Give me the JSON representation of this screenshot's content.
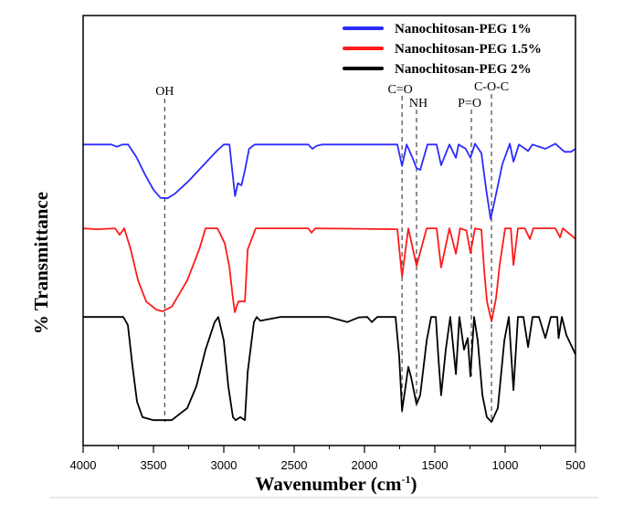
{
  "chart_data": {
    "type": "line",
    "title": "",
    "xlabel": "Wavenumber (cm",
    "xlabel_sup": "-1",
    "xlabel_close": ")",
    "ylabel": "% Transmittance",
    "xlim": [
      4000,
      500
    ],
    "ylim": [
      0,
      100
    ],
    "x_reversed": true,
    "grid": false,
    "legend_placement": "top-right",
    "xticks": [
      4000,
      3500,
      3000,
      2500,
      2000,
      1500,
      1000,
      500
    ],
    "xtick_labels": [
      "4000",
      "3500",
      "3000",
      "2500",
      "2000",
      "1500",
      "1000",
      "500"
    ],
    "series": [
      {
        "name": "Nanochitosan-PEG 1%",
        "color": "#2b2bff",
        "points": [
          [
            4000,
            70
          ],
          [
            3800,
            70
          ],
          [
            3760,
            69.5
          ],
          [
            3720,
            70
          ],
          [
            3680,
            70
          ],
          [
            3620,
            67
          ],
          [
            3560,
            63
          ],
          [
            3500,
            59.5
          ],
          [
            3450,
            57.6
          ],
          [
            3400,
            57.5
          ],
          [
            3350,
            58.5
          ],
          [
            3250,
            61.5
          ],
          [
            3150,
            65
          ],
          [
            3050,
            68.5
          ],
          [
            3000,
            70
          ],
          [
            2960,
            70
          ],
          [
            2940,
            64
          ],
          [
            2920,
            58
          ],
          [
            2900,
            61
          ],
          [
            2875,
            60.5
          ],
          [
            2850,
            64
          ],
          [
            2820,
            69
          ],
          [
            2780,
            70
          ],
          [
            2400,
            70
          ],
          [
            2370,
            69
          ],
          [
            2340,
            69.7
          ],
          [
            2300,
            70
          ],
          [
            1766,
            70
          ],
          [
            1733,
            65
          ],
          [
            1700,
            70
          ],
          [
            1660,
            67
          ],
          [
            1630,
            64.5
          ],
          [
            1604,
            64.1
          ],
          [
            1552,
            70
          ],
          [
            1487,
            70
          ],
          [
            1455,
            65.2
          ],
          [
            1396,
            70
          ],
          [
            1350,
            66.9
          ],
          [
            1331,
            70
          ],
          [
            1280,
            69
          ],
          [
            1247,
            66.9
          ],
          [
            1214,
            70.2
          ],
          [
            1169,
            68
          ],
          [
            1136,
            59.7
          ],
          [
            1103,
            52.7
          ],
          [
            1065,
            58.4
          ],
          [
            1020,
            65.4
          ],
          [
            967,
            70.2
          ],
          [
            941,
            66
          ],
          [
            902,
            70
          ],
          [
            837,
            68.5
          ],
          [
            805,
            70
          ],
          [
            714,
            69
          ],
          [
            643,
            70.2
          ],
          [
            578,
            68.3
          ],
          [
            532,
            68.3
          ],
          [
            500,
            69
          ]
        ]
      },
      {
        "name": "Nanochitosan-PEG 1.5%",
        "color": "#ff1a1a",
        "points": [
          [
            4000,
            50.5
          ],
          [
            3900,
            50.3
          ],
          [
            3773,
            50.5
          ],
          [
            3740,
            49
          ],
          [
            3708,
            50.5
          ],
          [
            3662,
            45.6
          ],
          [
            3610,
            38.4
          ],
          [
            3552,
            33.5
          ],
          [
            3480,
            31.6
          ],
          [
            3435,
            31.2
          ],
          [
            3370,
            32.3
          ],
          [
            3260,
            38.4
          ],
          [
            3175,
            45.6
          ],
          [
            3130,
            50.5
          ],
          [
            3045,
            50.5
          ],
          [
            2993,
            47
          ],
          [
            2960,
            41.4
          ],
          [
            2935,
            34.2
          ],
          [
            2922,
            31
          ],
          [
            2896,
            33.5
          ],
          [
            2850,
            33.5
          ],
          [
            2830,
            45.6
          ],
          [
            2773,
            50.5
          ],
          [
            2400,
            50.5
          ],
          [
            2376,
            49.5
          ],
          [
            2350,
            50.5
          ],
          [
            1766,
            50.3
          ],
          [
            1733,
            39.3
          ],
          [
            1688,
            50.5
          ],
          [
            1630,
            41.8
          ],
          [
            1558,
            50.5
          ],
          [
            1487,
            50.5
          ],
          [
            1455,
            41.4
          ],
          [
            1396,
            50.5
          ],
          [
            1350,
            44.6
          ],
          [
            1320,
            50.5
          ],
          [
            1275,
            50
          ],
          [
            1247,
            44.8
          ],
          [
            1214,
            50.5
          ],
          [
            1169,
            50.2
          ],
          [
            1149,
            40.6
          ],
          [
            1129,
            33.5
          ],
          [
            1097,
            28.9
          ],
          [
            1065,
            34.2
          ],
          [
            1039,
            42
          ],
          [
            1000,
            50.5
          ],
          [
            960,
            50.5
          ],
          [
            941,
            42
          ],
          [
            909,
            50.5
          ],
          [
            860,
            50.5
          ],
          [
            824,
            48
          ],
          [
            800,
            50.5
          ],
          [
            700,
            50.5
          ],
          [
            643,
            50.5
          ],
          [
            610,
            48.4
          ],
          [
            590,
            50.5
          ],
          [
            519,
            48.6
          ],
          [
            500,
            48
          ]
        ]
      },
      {
        "name": "Nanochitosan-PEG 2%",
        "color": "#000000",
        "points": [
          [
            4000,
            29.9
          ],
          [
            3800,
            29.9
          ],
          [
            3714,
            29.9
          ],
          [
            3682,
            28
          ],
          [
            3650,
            18.7
          ],
          [
            3617,
            10.2
          ],
          [
            3578,
            6.6
          ],
          [
            3500,
            5.9
          ],
          [
            3370,
            5.9
          ],
          [
            3260,
            8.7
          ],
          [
            3195,
            13.8
          ],
          [
            3130,
            22.3
          ],
          [
            3065,
            28.7
          ],
          [
            3039,
            29.9
          ],
          [
            3000,
            24.4
          ],
          [
            2968,
            13.8
          ],
          [
            2935,
            6.6
          ],
          [
            2915,
            5.9
          ],
          [
            2883,
            6.6
          ],
          [
            2850,
            5.9
          ],
          [
            2830,
            17.2
          ],
          [
            2786,
            28.7
          ],
          [
            2766,
            29.9
          ],
          [
            2740,
            29
          ],
          [
            2600,
            29.9
          ],
          [
            2253,
            29.9
          ],
          [
            2123,
            28.7
          ],
          [
            2039,
            29.8
          ],
          [
            1980,
            29.9
          ],
          [
            1948,
            28.7
          ],
          [
            1909,
            29.9
          ],
          [
            1779,
            29.9
          ],
          [
            1753,
            20.8
          ],
          [
            1733,
            8.1
          ],
          [
            1714,
            12.3
          ],
          [
            1688,
            18.3
          ],
          [
            1669,
            15.9
          ],
          [
            1630,
            9.6
          ],
          [
            1604,
            11.7
          ],
          [
            1558,
            24.4
          ],
          [
            1526,
            29.9
          ],
          [
            1493,
            29.9
          ],
          [
            1474,
            20.2
          ],
          [
            1455,
            11.7
          ],
          [
            1422,
            22.3
          ],
          [
            1390,
            29.9
          ],
          [
            1350,
            16.6
          ],
          [
            1325,
            29.9
          ],
          [
            1292,
            22.3
          ],
          [
            1266,
            25
          ],
          [
            1247,
            16.1
          ],
          [
            1221,
            29.9
          ],
          [
            1195,
            24.4
          ],
          [
            1162,
            11.7
          ],
          [
            1130,
            6.6
          ],
          [
            1097,
            5.5
          ],
          [
            1052,
            8.7
          ],
          [
            1006,
            24.4
          ],
          [
            974,
            29.9
          ],
          [
            941,
            12.9
          ],
          [
            909,
            29.9
          ],
          [
            870,
            29.9
          ],
          [
            837,
            22.9
          ],
          [
            805,
            29.9
          ],
          [
            760,
            29.9
          ],
          [
            714,
            25
          ],
          [
            675,
            29.9
          ],
          [
            630,
            29.9
          ],
          [
            620,
            25
          ],
          [
            597,
            29.9
          ],
          [
            565,
            25.7
          ],
          [
            500,
            21.2
          ]
        ]
      }
    ],
    "annotations": [
      {
        "label": "OH",
        "x": 3420
      },
      {
        "label": "C=O",
        "x": 1733
      },
      {
        "label": "NH",
        "x": 1630
      },
      {
        "label": "P=O",
        "x": 1240
      },
      {
        "label": "C-O-C",
        "x": 1097
      }
    ]
  }
}
